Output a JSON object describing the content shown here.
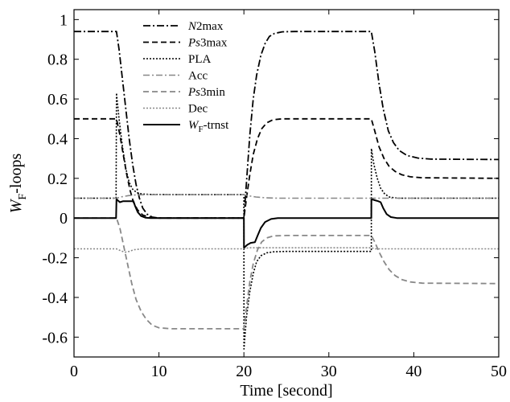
{
  "chart_data": {
    "type": "line",
    "title": "",
    "xlabel": "Time [second]",
    "ylabel_main": "W",
    "ylabel_sub": "F",
    "ylabel_rest": "-loops",
    "xlim": [
      0,
      50
    ],
    "ylim": [
      -0.7,
      1.05
    ],
    "xticks": [
      0,
      10,
      20,
      30,
      40,
      50
    ],
    "yticks": [
      1,
      0.8,
      0.6,
      0.4,
      0.2,
      0,
      -0.2,
      -0.4,
      -0.6
    ],
    "ytick_labels": [
      "1",
      "0.8",
      "0.6",
      "0.4",
      "0.2",
      "0",
      "-0.2",
      "-0.4",
      "-0.6"
    ],
    "grid": false,
    "legend_position": "top-center",
    "series": [
      {
        "legend_italic": "N",
        "legend_sub": "",
        "legend_rest": "2max",
        "color": "#000000",
        "dash": "9,3,2,3",
        "width": 1.8,
        "points": [
          [
            0,
            0.94
          ],
          [
            5,
            0.94
          ],
          [
            5.3,
            0.85
          ],
          [
            5.7,
            0.7
          ],
          [
            6.1,
            0.55
          ],
          [
            6.5,
            0.4
          ],
          [
            6.9,
            0.27
          ],
          [
            7.3,
            0.17
          ],
          [
            7.7,
            0.1
          ],
          [
            8.1,
            0.05
          ],
          [
            8.6,
            0.02
          ],
          [
            9.2,
            0.005
          ],
          [
            10,
            0
          ],
          [
            20,
            0
          ],
          [
            20.3,
            0.18
          ],
          [
            20.7,
            0.42
          ],
          [
            21.1,
            0.6
          ],
          [
            21.5,
            0.72
          ],
          [
            22,
            0.82
          ],
          [
            22.5,
            0.88
          ],
          [
            23,
            0.915
          ],
          [
            23.6,
            0.93
          ],
          [
            24.5,
            0.938
          ],
          [
            26,
            0.94
          ],
          [
            35,
            0.94
          ],
          [
            35.4,
            0.84
          ],
          [
            35.9,
            0.68
          ],
          [
            36.4,
            0.55
          ],
          [
            37,
            0.44
          ],
          [
            37.6,
            0.38
          ],
          [
            38.3,
            0.34
          ],
          [
            39.2,
            0.315
          ],
          [
            40.5,
            0.302
          ],
          [
            42,
            0.297
          ],
          [
            50,
            0.295
          ]
        ]
      },
      {
        "legend_italic": "Ps",
        "legend_sub": "",
        "legend_rest": "3max",
        "color": "#000000",
        "dash": "7,4",
        "width": 1.8,
        "points": [
          [
            0,
            0.5
          ],
          [
            5,
            0.5
          ],
          [
            5.4,
            0.42
          ],
          [
            5.8,
            0.32
          ],
          [
            6.2,
            0.22
          ],
          [
            6.6,
            0.14
          ],
          [
            7,
            0.08
          ],
          [
            7.5,
            0.04
          ],
          [
            8.1,
            0.015
          ],
          [
            9,
            0.003
          ],
          [
            10,
            0
          ],
          [
            20,
            0
          ],
          [
            20.3,
            0.1
          ],
          [
            20.7,
            0.22
          ],
          [
            21.1,
            0.32
          ],
          [
            21.6,
            0.4
          ],
          [
            22.1,
            0.45
          ],
          [
            22.7,
            0.48
          ],
          [
            23.4,
            0.495
          ],
          [
            24.5,
            0.5
          ],
          [
            35,
            0.5
          ],
          [
            35.4,
            0.44
          ],
          [
            35.9,
            0.36
          ],
          [
            36.5,
            0.3
          ],
          [
            37.1,
            0.26
          ],
          [
            37.8,
            0.235
          ],
          [
            38.6,
            0.218
          ],
          [
            39.6,
            0.208
          ],
          [
            41,
            0.203
          ],
          [
            50,
            0.2
          ]
        ]
      },
      {
        "legend_italic": "",
        "legend_sub": "",
        "legend_rest": "PLA",
        "color": "#000000",
        "dash": "2,2",
        "width": 1.6,
        "points": [
          [
            0,
            0.1
          ],
          [
            4.95,
            0.1
          ],
          [
            5,
            0.63
          ],
          [
            5.3,
            0.5
          ],
          [
            5.7,
            0.36
          ],
          [
            6.1,
            0.25
          ],
          [
            6.5,
            0.18
          ],
          [
            6.9,
            0.145
          ],
          [
            7.4,
            0.128
          ],
          [
            8,
            0.121
          ],
          [
            9,
            0.119
          ],
          [
            12,
            0.118
          ],
          [
            20,
            0.118
          ],
          [
            20.01,
            -0.66
          ],
          [
            20.3,
            -0.5
          ],
          [
            20.7,
            -0.37
          ],
          [
            21.1,
            -0.28
          ],
          [
            21.5,
            -0.22
          ],
          [
            22,
            -0.19
          ],
          [
            22.7,
            -0.175
          ],
          [
            23.5,
            -0.17
          ],
          [
            25,
            -0.168
          ],
          [
            35,
            -0.168
          ],
          [
            35.01,
            0.35
          ],
          [
            35.3,
            0.27
          ],
          [
            35.7,
            0.2
          ],
          [
            36.1,
            0.15
          ],
          [
            36.6,
            0.12
          ],
          [
            37.2,
            0.105
          ],
          [
            38.2,
            0.1
          ],
          [
            40,
            0.1
          ],
          [
            50,
            0.1
          ]
        ]
      },
      {
        "legend_italic": "",
        "legend_sub": "",
        "legend_rest": "Acc",
        "color": "#888888",
        "dash": "8,3,2,3",
        "width": 1.6,
        "points": [
          [
            0,
            0.1
          ],
          [
            5,
            0.1
          ],
          [
            5.6,
            0.107
          ],
          [
            6.4,
            0.113
          ],
          [
            7.4,
            0.117
          ],
          [
            8.6,
            0.118
          ],
          [
            20,
            0.118
          ],
          [
            20.6,
            0.112
          ],
          [
            21.4,
            0.106
          ],
          [
            22.5,
            0.102
          ],
          [
            24,
            0.1
          ],
          [
            35,
            0.1
          ],
          [
            50,
            0.1
          ]
        ]
      },
      {
        "legend_italic": "Ps",
        "legend_sub": "",
        "legend_rest": "3min",
        "color": "#888888",
        "dash": "7,4",
        "width": 1.8,
        "points": [
          [
            0,
            0
          ],
          [
            5,
            0
          ],
          [
            5.4,
            -0.05
          ],
          [
            5.8,
            -0.13
          ],
          [
            6.3,
            -0.23
          ],
          [
            6.8,
            -0.33
          ],
          [
            7.3,
            -0.41
          ],
          [
            7.9,
            -0.47
          ],
          [
            8.5,
            -0.51
          ],
          [
            9.2,
            -0.54
          ],
          [
            10,
            -0.553
          ],
          [
            11.5,
            -0.558
          ],
          [
            20,
            -0.558
          ],
          [
            20.3,
            -0.45
          ],
          [
            20.7,
            -0.32
          ],
          [
            21.1,
            -0.23
          ],
          [
            21.6,
            -0.16
          ],
          [
            22.1,
            -0.12
          ],
          [
            22.7,
            -0.1
          ],
          [
            23.5,
            -0.09
          ],
          [
            25,
            -0.088
          ],
          [
            35,
            -0.088
          ],
          [
            35.4,
            -0.12
          ],
          [
            35.9,
            -0.17
          ],
          [
            36.5,
            -0.22
          ],
          [
            37.1,
            -0.26
          ],
          [
            37.8,
            -0.29
          ],
          [
            38.6,
            -0.31
          ],
          [
            39.6,
            -0.322
          ],
          [
            41,
            -0.328
          ],
          [
            50,
            -0.33
          ]
        ]
      },
      {
        "legend_italic": "",
        "legend_sub": "",
        "legend_rest": "Dec",
        "color": "#888888",
        "dash": "2,2",
        "width": 1.6,
        "points": [
          [
            0,
            -0.155
          ],
          [
            5,
            -0.155
          ],
          [
            5.5,
            -0.165
          ],
          [
            6,
            -0.172
          ],
          [
            6.5,
            -0.168
          ],
          [
            7,
            -0.16
          ],
          [
            8,
            -0.155
          ],
          [
            20,
            -0.155
          ],
          [
            20.5,
            -0.15
          ],
          [
            21.5,
            -0.15
          ],
          [
            35,
            -0.15
          ],
          [
            35.5,
            -0.155
          ],
          [
            37,
            -0.155
          ],
          [
            50,
            -0.155
          ]
        ]
      },
      {
        "legend_italic": "W",
        "legend_sub": "F",
        "legend_rest": "-trnst",
        "color": "#000000",
        "dash": "",
        "width": 2.0,
        "points": [
          [
            0,
            0
          ],
          [
            4.95,
            0
          ],
          [
            5,
            0.095
          ],
          [
            5.4,
            0.08
          ],
          [
            5.8,
            0.085
          ],
          [
            6.4,
            0.085
          ],
          [
            7,
            0.085
          ],
          [
            7.2,
            0.06
          ],
          [
            7.5,
            0.03
          ],
          [
            7.9,
            0.01
          ],
          [
            8.4,
            0.002
          ],
          [
            9,
            0
          ],
          [
            20,
            0
          ],
          [
            20.01,
            -0.15
          ],
          [
            20.4,
            -0.135
          ],
          [
            20.8,
            -0.125
          ],
          [
            21.3,
            -0.122
          ],
          [
            21.6,
            -0.09
          ],
          [
            22,
            -0.05
          ],
          [
            22.5,
            -0.02
          ],
          [
            23.2,
            -0.005
          ],
          [
            24,
            0
          ],
          [
            35,
            0
          ],
          [
            35.01,
            0.095
          ],
          [
            35.4,
            0.09
          ],
          [
            35.8,
            0.085
          ],
          [
            36.1,
            0.08
          ],
          [
            36.4,
            0.05
          ],
          [
            36.8,
            0.02
          ],
          [
            37.3,
            0.005
          ],
          [
            38,
            0
          ],
          [
            50,
            0
          ]
        ]
      }
    ]
  }
}
